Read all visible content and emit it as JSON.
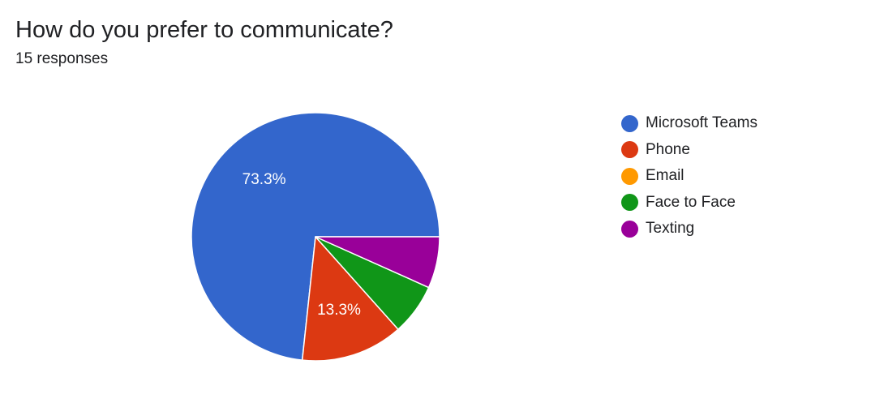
{
  "question": {
    "title": "How do you prefer to communicate?",
    "responses": "15 responses"
  },
  "chart_data": {
    "type": "pie",
    "title": "How do you prefer to communicate?",
    "subtitle": "15 responses",
    "legend_position": "right",
    "slices": [
      {
        "name": "Microsoft Teams",
        "value": 73.3,
        "color": "#3366cc",
        "label": "73.3%"
      },
      {
        "name": "Phone",
        "value": 13.3,
        "color": "#dc3912",
        "label": "13.3%"
      },
      {
        "name": "Email",
        "value": 0,
        "color": "#ff9900",
        "label": ""
      },
      {
        "name": "Face to Face",
        "value": 6.7,
        "color": "#109618",
        "label": ""
      },
      {
        "name": "Texting",
        "value": 6.7,
        "color": "#990099",
        "label": ""
      }
    ]
  }
}
